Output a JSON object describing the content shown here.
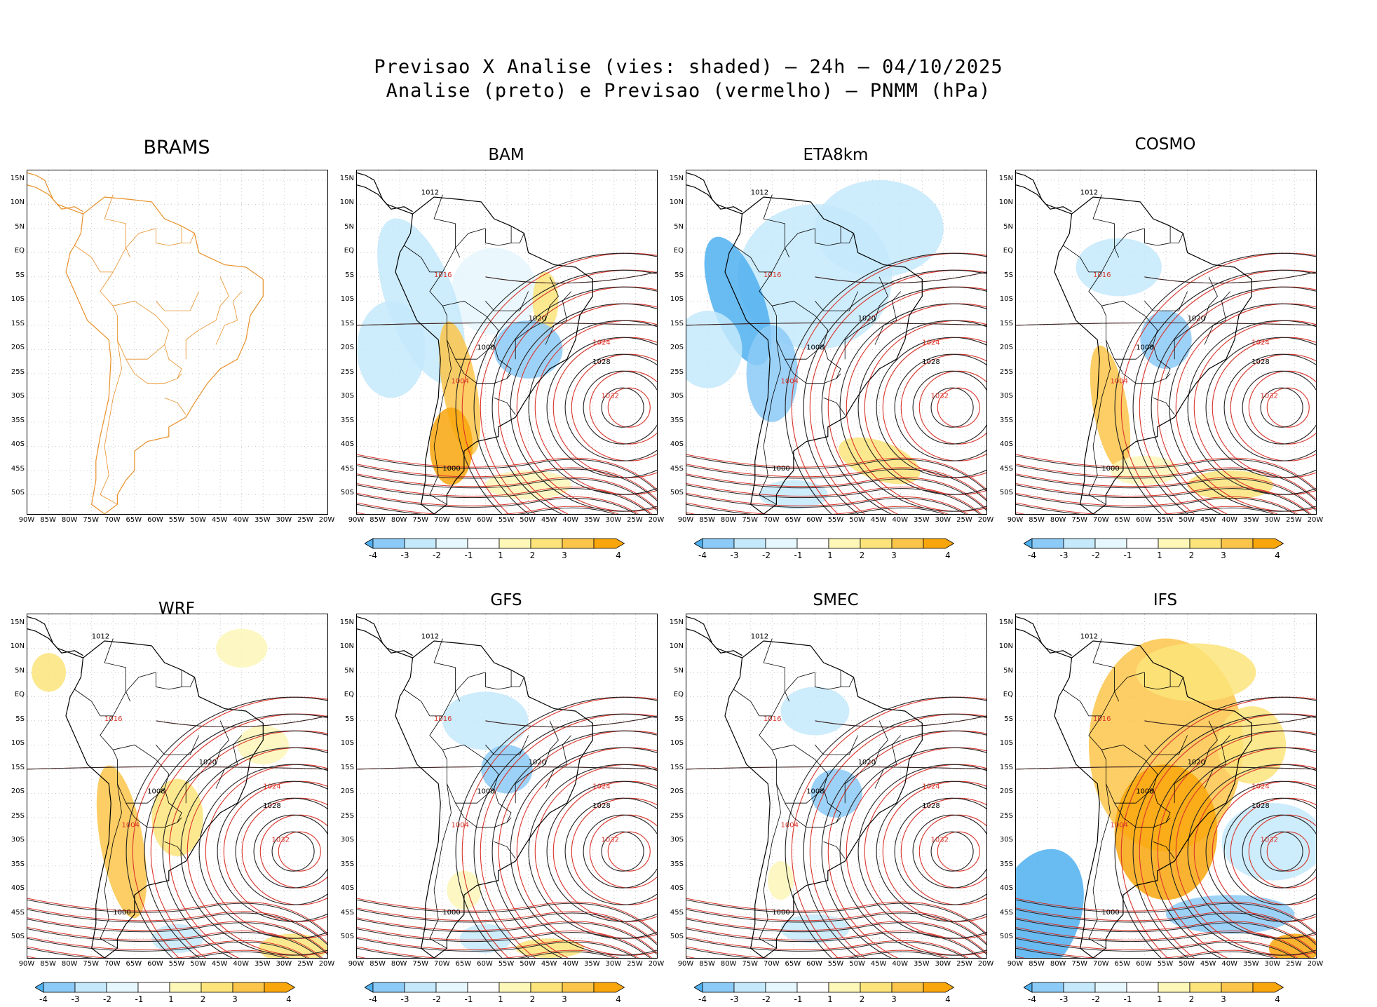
{
  "title_line1": "Previsao X Analise (vies: shaded) – 24h – 04/10/2025",
  "title_line2": "Analise (preto) e Previsao (vermelho) – PNMM (hPa)",
  "lat_labels": [
    "15N",
    "10N",
    "5N",
    "EQ",
    "5S",
    "10S",
    "15S",
    "20S",
    "25S",
    "30S",
    "35S",
    "40S",
    "45S",
    "50S"
  ],
  "lon_labels": [
    "90W",
    "85W",
    "80W",
    "75W",
    "70W",
    "65W",
    "60W",
    "55W",
    "50W",
    "45W",
    "40W",
    "35W",
    "30W",
    "25W",
    "20W"
  ],
  "colorbar": {
    "labels": [
      "-4",
      "-3",
      "-2",
      "-1",
      "1",
      "2",
      "3",
      "4"
    ],
    "colors": [
      "#4fb0f0",
      "#8ccaf7",
      "#c4e9fb",
      "#e6f7fd",
      "#ffffff",
      "#fdf7b8",
      "#fce47a",
      "#fbc54a",
      "#f9a60c"
    ]
  },
  "panels": [
    {
      "name": "BRAMS",
      "style": "coast"
    },
    {
      "name": "BAM",
      "style": "field"
    },
    {
      "name": "ETA8km",
      "style": "field"
    },
    {
      "name": "COSMO",
      "style": "field"
    },
    {
      "name": "WRF",
      "style": "field"
    },
    {
      "name": "GFS",
      "style": "field"
    },
    {
      "name": "SMEC",
      "style": "field"
    },
    {
      "name": "IFS",
      "style": "field"
    }
  ],
  "isobar_labels": [
    "1012",
    "1016",
    "1020",
    "1024",
    "1028",
    "1032",
    "1008",
    "1004",
    "1000"
  ]
}
